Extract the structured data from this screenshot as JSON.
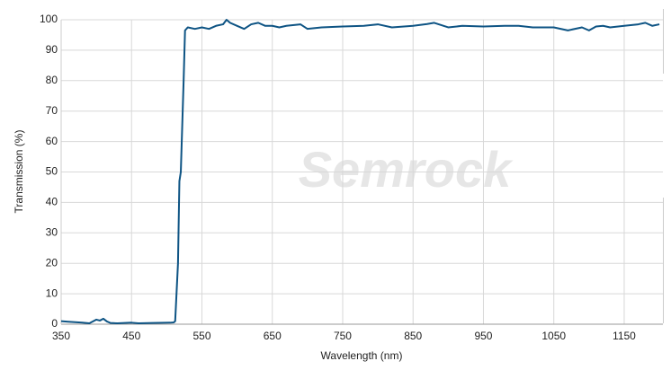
{
  "chart_data": {
    "type": "line",
    "watermark": "Semrock",
    "x_label": "Wavelength (nm)",
    "y_label": "Transmission (%)",
    "x": [
      350,
      360,
      380,
      390,
      400,
      405,
      410,
      415,
      420,
      430,
      450,
      460,
      480,
      505,
      510,
      512,
      516,
      518,
      520,
      524,
      526,
      530,
      540,
      550,
      560,
      570,
      580,
      585,
      590,
      600,
      610,
      620,
      630,
      640,
      650,
      660,
      670,
      690,
      700,
      720,
      750,
      780,
      800,
      820,
      850,
      870,
      880,
      900,
      920,
      950,
      980,
      1000,
      1020,
      1050,
      1070,
      1090,
      1100,
      1110,
      1120,
      1130,
      1150,
      1170,
      1180,
      1190,
      1200
    ],
    "values": [
      1,
      0.8,
      0.5,
      0.3,
      1.5,
      1.2,
      1.8,
      0.9,
      0.4,
      0.3,
      0.5,
      0.3,
      0.4,
      0.5,
      0.6,
      1,
      20,
      47,
      50,
      80,
      96.5,
      97.5,
      97,
      97.5,
      97,
      98,
      98.5,
      100,
      99,
      98,
      97,
      98.5,
      99,
      98,
      98,
      97.5,
      98,
      98.5,
      97,
      97.5,
      97.8,
      98,
      98.5,
      97.5,
      98,
      98.6,
      99,
      97.5,
      98,
      97.8,
      98,
      98,
      97.5,
      97.5,
      96.5,
      97.5,
      96.5,
      97.8,
      98,
      97.5,
      98,
      98.5,
      99,
      98,
      98.5
    ],
    "color": "#0e5484",
    "xlim": [
      350,
      1205
    ],
    "xticks": [
      350,
      450,
      550,
      650,
      750,
      850,
      950,
      1050,
      1150
    ],
    "ylim": [
      0,
      100
    ],
    "yticks": [
      0,
      10,
      20,
      30,
      40,
      50,
      60,
      70,
      80,
      90,
      100
    ],
    "grid": true
  }
}
